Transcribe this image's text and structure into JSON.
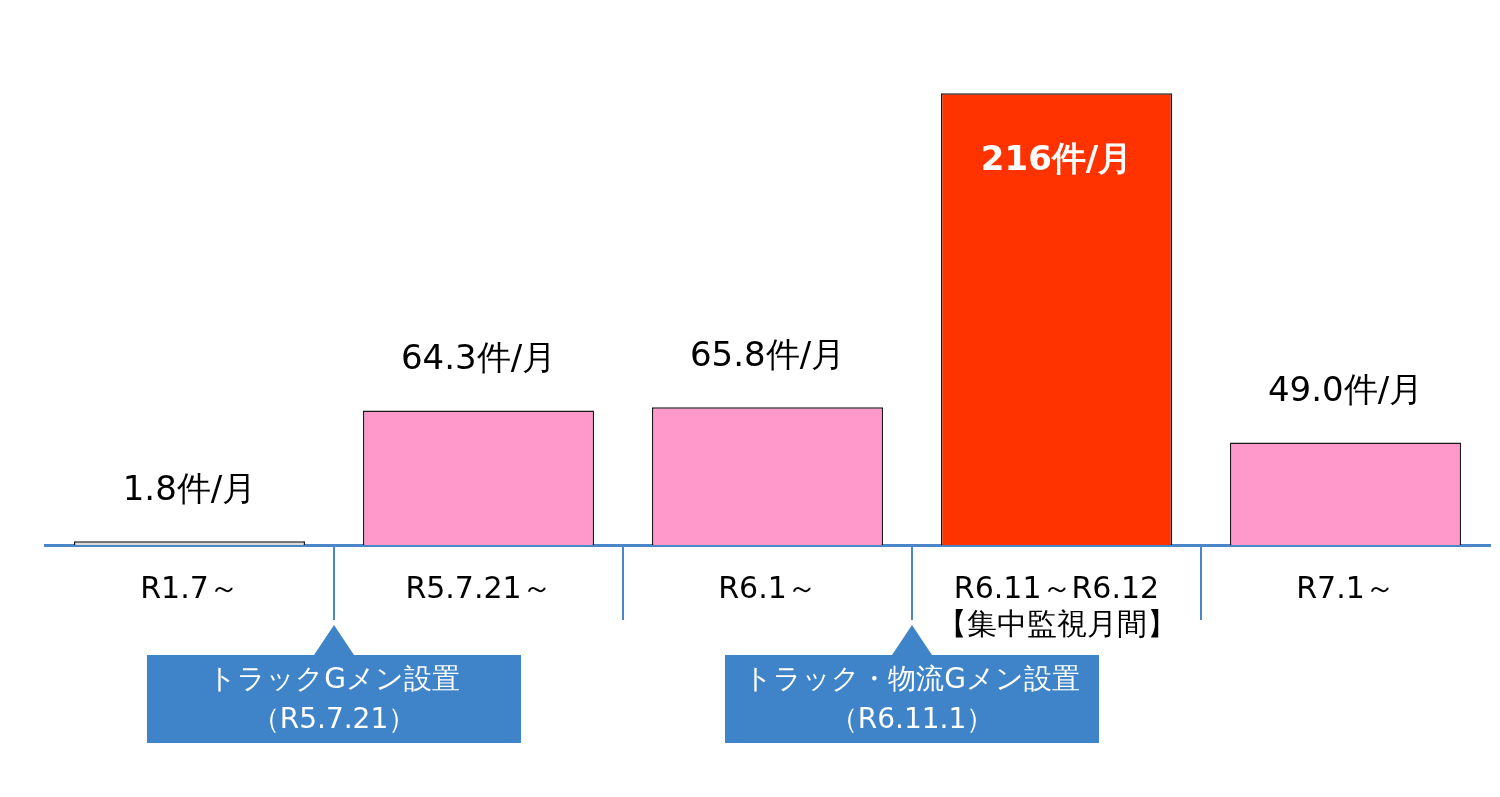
{
  "chart_data": {
    "type": "bar",
    "categories": [
      "R1.7～",
      "R5.7.21～",
      "R6.1～",
      "R6.11～R6.12【集中監視月間】",
      "R7.1～"
    ],
    "values": [
      1.8,
      64.3,
      65.8,
      216,
      49.0
    ],
    "colors": [
      "#d9d9d9",
      "#ff99cc",
      "#ff99cc",
      "#ff3300",
      "#ff99cc"
    ],
    "value_labels": [
      "1.8件/月",
      "64.3件/月",
      "65.8件/月",
      "216件/月",
      "49.0件/月"
    ],
    "annotations": [
      "トラックGメン設置（R5.7.21）",
      "トラック・物流Gメン設置（R6.11.1）"
    ]
  }
}
